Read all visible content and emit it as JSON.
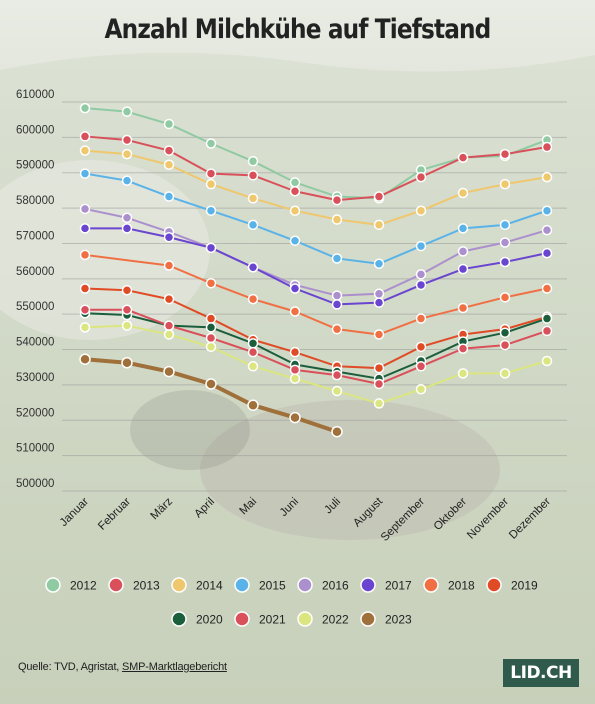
{
  "title": "Anzahl Milchkühe auf Tiefstand",
  "source": {
    "prefix": "Quelle: TVD, Agristat, ",
    "link": "SMP-Marktlagebericht"
  },
  "logo": "LID.CH",
  "chart_data": {
    "type": "line",
    "categories": [
      "Januar",
      "Februar",
      "März",
      "April",
      "Mai",
      "Juni",
      "Juli",
      "August",
      "September",
      "Oktober",
      "November",
      "Dezember"
    ],
    "y_ticks": [
      "610000",
      "600000",
      "590000",
      "580000",
      "570000",
      "560000",
      "550000",
      "540000",
      "530000",
      "520000",
      "510000",
      "500000"
    ],
    "ylim": [
      500000,
      610000
    ],
    "grid": true,
    "legend_position": "bottom",
    "series": [
      {
        "name": "2012",
        "color": "#8fcaa2",
        "values": [
          606000,
          605000,
          601500,
          596000,
          591000,
          585000,
          581000,
          580500,
          588500,
          592000,
          592500,
          597000
        ]
      },
      {
        "name": "2013",
        "color": "#d9505a",
        "values": [
          598000,
          597000,
          594000,
          587500,
          587000,
          582500,
          580000,
          581000,
          586500,
          592000,
          593000,
          595000
        ]
      },
      {
        "name": "2014",
        "color": "#efc76d",
        "values": [
          594000,
          593000,
          590000,
          584500,
          580500,
          577000,
          574500,
          573000,
          577000,
          582000,
          584500,
          586500
        ]
      },
      {
        "name": "2015",
        "color": "#5ab3e8",
        "values": [
          587500,
          585500,
          581000,
          577000,
          573000,
          568500,
          563500,
          562000,
          567000,
          572000,
          573000,
          577000
        ]
      },
      {
        "name": "2016",
        "color": "#ab90cd",
        "values": [
          577500,
          575000,
          571000,
          566500,
          561000,
          556000,
          553000,
          553500,
          559000,
          565500,
          568000,
          571500
        ]
      },
      {
        "name": "2017",
        "color": "#6a45cf",
        "values": [
          572000,
          572000,
          569500,
          566500,
          561000,
          555000,
          550500,
          551000,
          556000,
          560500,
          562500,
          565000
        ]
      },
      {
        "name": "2018",
        "color": "#f07044",
        "values": [
          564500,
          null,
          561500,
          556500,
          552000,
          548500,
          543500,
          542000,
          546500,
          549500,
          552500,
          555000
        ]
      },
      {
        "name": "2019",
        "color": "#e04a25",
        "values": [
          555000,
          554500,
          552000,
          546500,
          540500,
          537000,
          533000,
          532500,
          538500,
          542000,
          543500,
          547000
        ]
      },
      {
        "name": "2020",
        "color": "#1b5e3c",
        "values": [
          548000,
          547500,
          544500,
          544000,
          539500,
          533500,
          531500,
          529500,
          534500,
          540000,
          542500,
          546500
        ]
      },
      {
        "name": "2021",
        "color": "#d9505a",
        "values": [
          549000,
          549000,
          544500,
          541000,
          537000,
          532000,
          530500,
          528000,
          533000,
          538000,
          539000,
          543000
        ]
      },
      {
        "name": "2022",
        "color": "#dbe680",
        "values": [
          544000,
          544500,
          542000,
          538500,
          533000,
          529500,
          526000,
          522500,
          526500,
          531000,
          531000,
          534500
        ]
      },
      {
        "name": "2023",
        "color": "#a0703a",
        "values": [
          535000,
          534000,
          531500,
          528000,
          522000,
          518500,
          514500,
          null,
          null,
          null,
          null,
          null
        ]
      }
    ]
  }
}
